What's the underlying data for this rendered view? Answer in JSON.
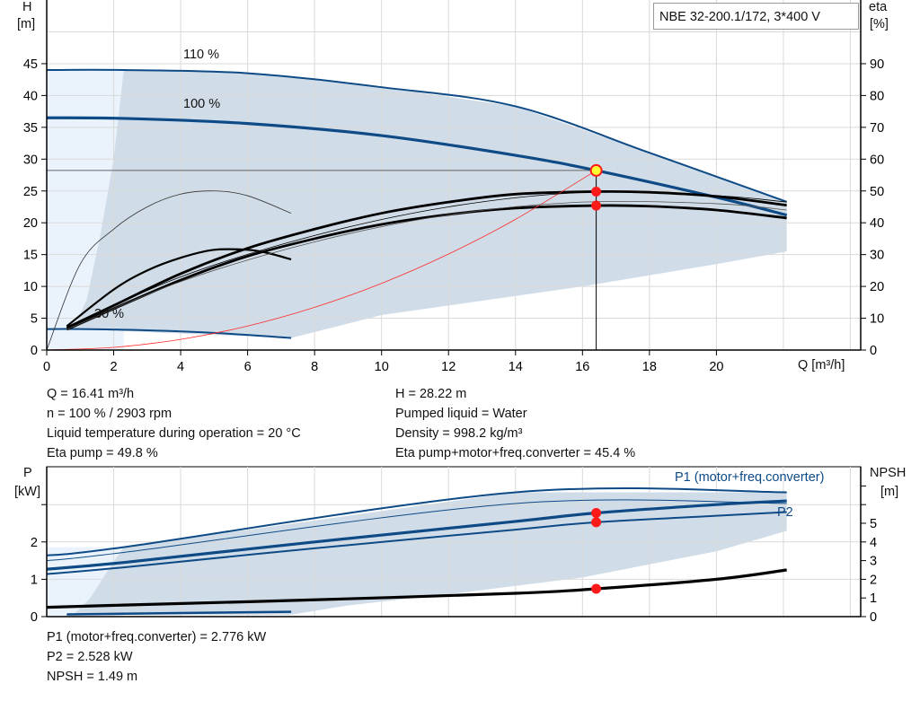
{
  "title_box": "NBE 32-200.1/172, 3*400 V",
  "info": {
    "left": [
      "Q = 16.41 m³/h",
      "n = 100 % / 2903 rpm",
      "Liquid temperature during operation = 20 °C",
      "Eta pump = 49.8 %"
    ],
    "right": [
      "H = 28.22 m",
      "Pumped liquid = Water",
      "Density = 998.2 kg/m³",
      "Eta pump+motor+freq.converter = 45.4 %"
    ],
    "bottom": [
      "P1 (motor+freq.converter) = 2.776 kW",
      "P2 = 2.528 kW",
      "NPSH = 1.49 m"
    ]
  },
  "colors": {
    "curve_blue": "#0d4a86",
    "area": "#d0dce7",
    "area_light": "#eaf3fc",
    "system_curve": "#ff2a2a",
    "point": "#ff1a1a",
    "duty_point_fill": "#ffff33"
  },
  "chart_data": [
    {
      "type": "line",
      "xlabel": "Q [m³/h]",
      "ylabel": "H",
      "ylabel_unit": "[m]",
      "y2label": "eta",
      "y2label_unit": "[%]",
      "xlim": [
        0,
        24
      ],
      "ylim": [
        0,
        55
      ],
      "y2lim": [
        0,
        110
      ],
      "xticks": [
        0,
        2,
        4,
        6,
        8,
        10,
        12,
        14,
        16,
        18,
        20
      ],
      "yticks": [
        0,
        5,
        10,
        15,
        20,
        25,
        30,
        35,
        40,
        45
      ],
      "y2ticks": [
        0,
        10,
        20,
        30,
        40,
        50,
        60,
        70,
        80,
        90
      ],
      "grid": true,
      "curve_labels": [
        "110 %",
        "100 %",
        "30 %"
      ],
      "series": [
        {
          "kind": "H",
          "speed": "110 %",
          "x": [
            0,
            2.3,
            6,
            10,
            14,
            18,
            22.1
          ],
          "y": [
            44,
            44,
            43.5,
            41.3,
            38.3,
            31,
            23.3
          ]
        },
        {
          "kind": "H",
          "speed": "100 %",
          "x": [
            0,
            2.3,
            6,
            10,
            14,
            16.41,
            20,
            22.1
          ],
          "y": [
            36.5,
            36.4,
            35.6,
            33.7,
            30.6,
            28.22,
            24,
            21.2
          ]
        },
        {
          "kind": "H",
          "speed": "30 %",
          "x": [
            0,
            1,
            3,
            5,
            7.3
          ],
          "y": [
            3.3,
            3.3,
            3.1,
            2.7,
            1.9
          ]
        },
        {
          "kind": "eta pump",
          "speed": "100 %",
          "x": [
            0.6,
            2,
            4,
            6,
            8,
            10,
            12,
            14,
            16.41,
            18,
            20,
            22.1
          ],
          "y": [
            7,
            14,
            24,
            32,
            38,
            43,
            46.5,
            49,
            49.8,
            49.6,
            48.3,
            45.5
          ]
        },
        {
          "kind": "eta pump+motor+freq.converter",
          "speed": "100 %",
          "x": [
            0.6,
            2,
            4,
            6,
            8,
            10,
            12,
            14,
            16.41,
            18,
            20,
            22.1
          ],
          "y": [
            6.5,
            13,
            22,
            29.5,
            35,
            39.5,
            42.6,
            44.6,
            45.4,
            45.2,
            44,
            41.5
          ]
        },
        {
          "kind": "eta pump",
          "speed": "30 %",
          "x": [
            0,
            1,
            2,
            3,
            4,
            5,
            6,
            7.3
          ],
          "y": [
            0,
            27,
            38,
            45,
            49,
            50,
            48.5,
            43
          ]
        },
        {
          "kind": "eta pump+motor+freq.converter",
          "speed": "30 %",
          "x": [
            0.6,
            2,
            3,
            4,
            5,
            6,
            6.6,
            7.3
          ],
          "y": [
            7.5,
            19,
            25,
            29,
            31.5,
            31.5,
            30.5,
            28.5
          ]
        },
        {
          "kind": "system curve",
          "x": [
            0,
            2,
            4,
            6,
            8,
            10,
            12,
            14,
            16.41
          ],
          "y": [
            0,
            0.42,
            1.68,
            3.77,
            6.71,
            10.48,
            15.09,
            20.54,
            28.22
          ]
        }
      ],
      "duty_point": {
        "Q": 16.41,
        "H": 28.22,
        "eta_pump": 49.8,
        "eta_total": 45.4
      },
      "area": {
        "upper": {
          "x": [
            2.3,
            6,
            10,
            14,
            18,
            22.1
          ],
          "y": [
            44,
            43.5,
            41.3,
            38.3,
            31,
            23.3
          ]
        },
        "lower": {
          "x": [
            22.1,
            20,
            16,
            14,
            12,
            10,
            7.3
          ],
          "y": [
            15.5,
            13.5,
            10,
            8.5,
            7,
            5.5,
            1.9
          ]
        },
        "left": {
          "x": [
            0.8,
            1.2,
            1.6,
            2,
            2.3
          ],
          "y": [
            3.3,
            8,
            18,
            30,
            44
          ]
        }
      }
    },
    {
      "type": "line",
      "ylabel": "P",
      "ylabel_unit": "[kW]",
      "y2label": "NPSH",
      "y2label_unit": "[m]",
      "xlim": [
        0,
        24
      ],
      "ylim": [
        0,
        4
      ],
      "y2lim": [
        0,
        8
      ],
      "yticks": [
        0,
        1,
        2
      ],
      "y2ticks": [
        0,
        1,
        2,
        3,
        4,
        5
      ],
      "grid": true,
      "series": [
        {
          "name": "P1 (motor+freq.converter)",
          "speed": "110 %",
          "x": [
            0,
            2.3,
            14,
            22.1
          ],
          "y": [
            1.64,
            1.86,
            3.33,
            3.33
          ]
        },
        {
          "speed": "110 %",
          "kind": "P2",
          "x": [
            0,
            2.3,
            14,
            22.1
          ],
          "y": [
            1.5,
            1.72,
            3.03,
            3.03
          ]
        },
        {
          "kind": "P1",
          "speed": "100 %",
          "x": [
            0,
            2.3,
            8,
            14,
            16.41,
            20,
            22.1
          ],
          "y": [
            1.27,
            1.45,
            2.0,
            2.55,
            2.776,
            3.0,
            3.1
          ]
        },
        {
          "name": "P2",
          "speed": "100 %",
          "x": [
            0,
            2.3,
            8,
            14,
            16.41,
            20,
            22.1
          ],
          "y": [
            1.14,
            1.32,
            1.83,
            2.33,
            2.528,
            2.7,
            2.8
          ]
        },
        {
          "kind": "P1",
          "speed": "30 %",
          "x": [
            0.6,
            7.3
          ],
          "y": [
            0.06,
            0.13
          ]
        },
        {
          "kind": "NPSH",
          "x": [
            0,
            2.3,
            8,
            14,
            16.41,
            20,
            22.1
          ],
          "y": [
            0.5,
            0.62,
            0.9,
            1.25,
            1.49,
            2.0,
            2.5
          ]
        }
      ],
      "duty_point": {
        "P1": 2.776,
        "P2": 2.528,
        "NPSH": 1.49
      },
      "area": {
        "upper": {
          "x": [
            2.3,
            14,
            22.1
          ],
          "y": [
            1.86,
            3.33,
            3.33
          ]
        },
        "lower": {
          "x": [
            22.1,
            20,
            16,
            12,
            9,
            7.3
          ],
          "y": [
            2.3,
            1.75,
            1.05,
            0.6,
            0.3,
            0.05
          ]
        },
        "left": {
          "x": [
            0.8,
            1.3,
            1.8,
            2.3
          ],
          "y": [
            0.05,
            0.5,
            1.2,
            1.86
          ]
        }
      }
    }
  ]
}
